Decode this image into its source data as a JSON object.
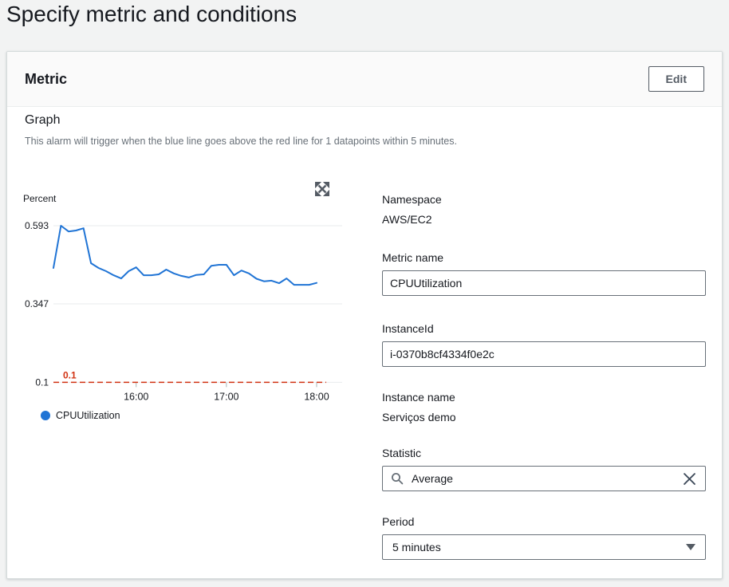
{
  "page": {
    "title": "Specify metric and conditions"
  },
  "card": {
    "title": "Metric",
    "edit_button_label": "Edit",
    "graph_section": {
      "label": "Graph",
      "description": "This alarm will trigger when the blue line goes above the red line for 1 datapoints within 5 minutes."
    }
  },
  "fields": {
    "namespace": {
      "label": "Namespace",
      "value": "AWS/EC2"
    },
    "metric_name": {
      "label": "Metric name",
      "value": "CPUUtilization"
    },
    "instance_id": {
      "label": "InstanceId",
      "value": "i-0370b8cf4334f0e2c"
    },
    "instance_name": {
      "label": "Instance name",
      "value": "Serviços demo"
    },
    "statistic": {
      "label": "Statistic",
      "value": "Average"
    },
    "period": {
      "label": "Period",
      "value": "5 minutes"
    }
  },
  "icons": {
    "expand": "expand-arrows-icon",
    "search": "magnifier-icon",
    "clear": "x-icon",
    "dropdown": "caret-down-icon"
  },
  "colors": {
    "line_blue": "#2074d5",
    "alarm_red": "#d13212",
    "text_primary": "#16191f",
    "text_secondary": "#687078",
    "card_border": "#d5dbdb",
    "button_text": "#545b64",
    "page_background": "#f2f3f3",
    "grid": "#e9ebed"
  },
  "chart_data": {
    "type": "line",
    "ylabel": "Percent",
    "yticks": [
      0.593,
      0.347,
      0.1
    ],
    "xticks": [
      "16:00",
      "17:00",
      "18:00"
    ],
    "x_range": [
      "15:05",
      "18:00"
    ],
    "grid": true,
    "legend_position": "bottom",
    "threshold": {
      "value": 0.1,
      "label": "0.1",
      "color": "#d13212",
      "style": "dashed"
    },
    "series": [
      {
        "name": "CPUUtilization",
        "color": "#2074d5",
        "x": [
          "15:05",
          "15:10",
          "15:15",
          "15:20",
          "15:25",
          "15:30",
          "15:35",
          "15:40",
          "15:45",
          "15:50",
          "15:55",
          "16:00",
          "16:05",
          "16:10",
          "16:15",
          "16:20",
          "16:25",
          "16:30",
          "16:35",
          "16:40",
          "16:45",
          "16:50",
          "16:55",
          "17:00",
          "17:05",
          "17:10",
          "17:15",
          "17:20",
          "17:25",
          "17:30",
          "17:35",
          "17:40",
          "17:45",
          "17:50",
          "17:55",
          "18:00"
        ],
        "values": [
          0.46,
          0.593,
          0.575,
          0.578,
          0.585,
          0.475,
          0.46,
          0.45,
          0.437,
          0.427,
          0.45,
          0.462,
          0.437,
          0.437,
          0.44,
          0.455,
          0.443,
          0.435,
          0.43,
          0.438,
          0.44,
          0.467,
          0.47,
          0.47,
          0.437,
          0.452,
          0.443,
          0.426,
          0.418,
          0.42,
          0.412,
          0.427,
          0.407,
          0.407,
          0.407,
          0.413
        ]
      }
    ]
  }
}
